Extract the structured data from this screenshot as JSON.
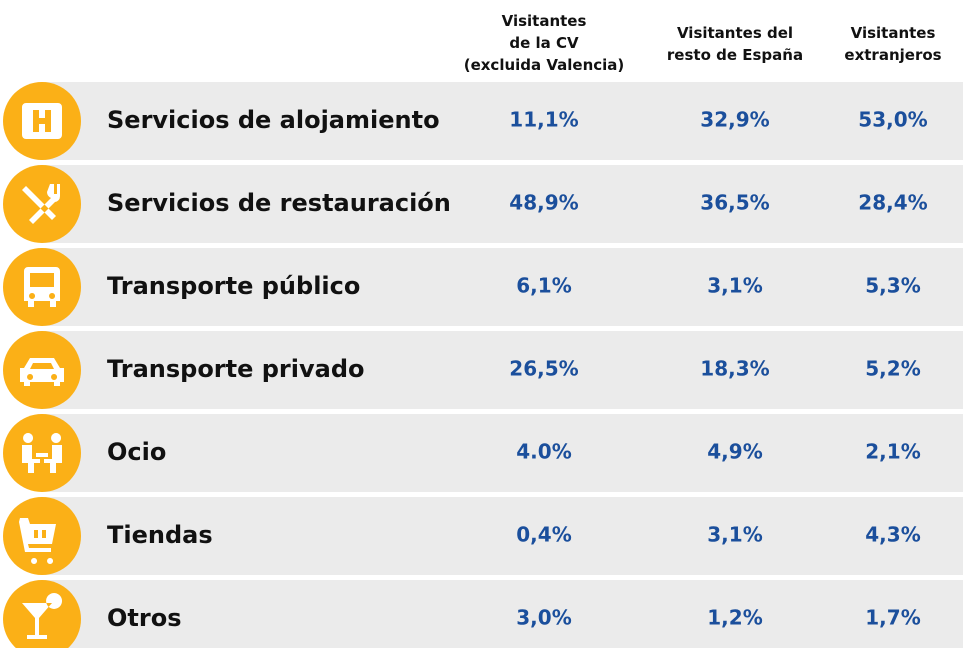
{
  "table": {
    "columns": [
      [
        "Visitantes",
        "de la CV",
        "(excluida Valencia)"
      ],
      [
        "Visitantes del",
        "resto de España"
      ],
      [
        "Visitantes",
        "extranjeros"
      ]
    ],
    "rows": [
      {
        "label": "Servicios de alojamiento",
        "values": [
          "11,1%",
          "32,9%",
          "53,0%"
        ]
      },
      {
        "label": "Servicios de restauración",
        "values": [
          "48,9%",
          "36,5%",
          "28,4%"
        ]
      },
      {
        "label": "Transporte público",
        "values": [
          "6,1%",
          "3,1%",
          "5,3%"
        ]
      },
      {
        "label": "Transporte privado",
        "values": [
          "26,5%",
          "18,3%",
          "5,2%"
        ]
      },
      {
        "label": "Ocio",
        "values": [
          "4.0%",
          "4,9%",
          "2,1%"
        ]
      },
      {
        "label": "Tiendas",
        "values": [
          "0,4%",
          "3,1%",
          "4,3%"
        ]
      },
      {
        "label": "Otros",
        "values": [
          "3,0%",
          "1,2%",
          "1,7%"
        ]
      }
    ]
  }
}
